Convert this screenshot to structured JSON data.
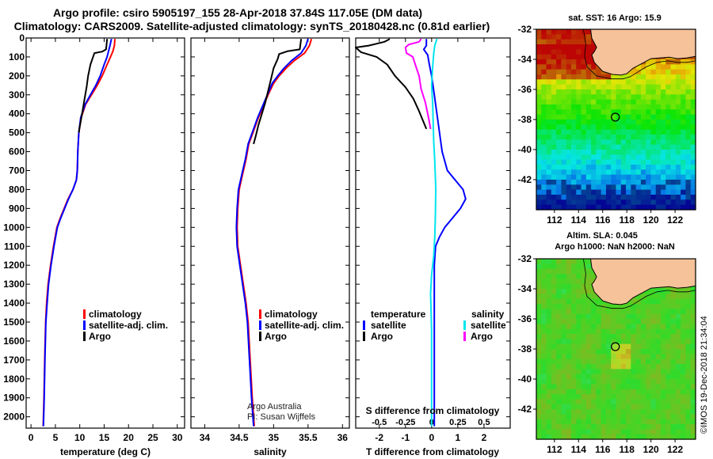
{
  "header": {
    "line1": "Argo profile: csiro 5905197_155 28-Apr-2018 37.84S 117.05E (DM data)",
    "line2": "Climatology: CARS2009. Satellite-adjusted climatology: synTS_20180428.nc (0.81d earlier)"
  },
  "colors": {
    "climatology": "#ff0000",
    "satellite": "#0000ff",
    "argo": "#000000",
    "salinity_diff": "#00e5ee",
    "argo_s_diff": "#ff00ff",
    "land": "#f6c29a"
  },
  "depth_ticks": [
    0,
    100,
    200,
    300,
    400,
    500,
    600,
    700,
    800,
    900,
    1000,
    1100,
    1200,
    1300,
    1400,
    1500,
    1600,
    1700,
    1800,
    1900,
    2000
  ],
  "chart_data": [
    {
      "type": "line",
      "name": "temperature-panel",
      "xlabel": "temperature (deg C)",
      "ylabel": "",
      "xlim": [
        -1,
        31.5
      ],
      "ylim": [
        2060,
        0
      ],
      "xticks": [
        0,
        5,
        10,
        15,
        20,
        25,
        30
      ],
      "legend_position": "bottom-right",
      "series": [
        {
          "name": "climatology",
          "color": "#ff0000",
          "x": [
            17.2,
            17.1,
            16.8,
            16.3,
            15.6,
            14.6,
            13.6,
            12.4,
            11.2,
            10.3,
            9.8,
            9.6,
            9.5,
            9.3,
            8.6,
            7.6,
            6.8,
            6.0,
            5.3,
            4.6,
            4.0,
            3.5,
            3.2,
            3.0,
            2.8,
            2.65,
            2.5
          ],
          "y": [
            5,
            40,
            70,
            100,
            140,
            200,
            250,
            300,
            350,
            420,
            500,
            600,
            700,
            750,
            800,
            850,
            900,
            950,
            1000,
            1100,
            1200,
            1300,
            1400,
            1500,
            1700,
            1900,
            2050
          ]
        },
        {
          "name": "satellite-adj. clim.",
          "color": "#0000ff",
          "x": [
            16.5,
            16.2,
            15.9,
            15.6,
            15.0,
            14.2,
            13.3,
            12.2,
            11.1,
            10.2,
            9.8,
            9.6,
            9.5,
            9.3,
            8.6,
            7.7,
            6.9,
            6.1,
            5.4,
            4.7,
            4.1,
            3.6,
            3.3,
            3.05,
            2.85,
            2.7,
            2.55
          ],
          "y": [
            5,
            40,
            70,
            100,
            140,
            200,
            250,
            300,
            350,
            420,
            500,
            600,
            700,
            750,
            800,
            850,
            900,
            950,
            1000,
            1100,
            1200,
            1300,
            1400,
            1500,
            1700,
            1900,
            2050
          ]
        },
        {
          "name": "Argo",
          "color": "#000000",
          "x": [
            15.6,
            15.4,
            14.6,
            13.0,
            12.8,
            12.2,
            11.7,
            11.4,
            11.0,
            10.6,
            10.2,
            9.9,
            9.8
          ],
          "y": [
            5,
            60,
            72,
            80,
            95,
            140,
            200,
            260,
            320,
            380,
            440,
            480,
            500
          ]
        }
      ]
    },
    {
      "type": "line",
      "name": "salinity-panel",
      "xlabel": "salinity",
      "ylabel": "",
      "xlim": [
        33.8,
        36.1
      ],
      "ylim": [
        2060,
        0
      ],
      "xticks": [
        34,
        34.5,
        35,
        35.5,
        36
      ],
      "xtick_labels": [
        "34",
        "34.5",
        "35",
        "35.5",
        "36"
      ],
      "legend_position": "bottom-right",
      "annotation": [
        "Argo Australia",
        "PI: Susan Wijffels"
      ],
      "series": [
        {
          "name": "climatology",
          "color": "#ff0000",
          "x": [
            35.55,
            35.52,
            35.45,
            35.3,
            35.18,
            35.08,
            35.0,
            34.92,
            34.85,
            34.78,
            34.7,
            34.64,
            34.6,
            34.55,
            34.5,
            34.48,
            34.47,
            34.48,
            34.52,
            34.56,
            34.6,
            34.63,
            34.66,
            34.69,
            34.72
          ],
          "y": [
            5,
            40,
            80,
            120,
            160,
            200,
            240,
            300,
            360,
            420,
            500,
            560,
            640,
            720,
            800,
            900,
            1000,
            1100,
            1200,
            1300,
            1400,
            1500,
            1700,
            1900,
            2050
          ]
        },
        {
          "name": "satellite-adj. clim.",
          "color": "#0000ff",
          "x": [
            35.5,
            35.47,
            35.4,
            35.26,
            35.15,
            35.06,
            34.98,
            34.91,
            34.84,
            34.77,
            34.69,
            34.63,
            34.59,
            34.54,
            34.49,
            34.47,
            34.46,
            34.47,
            34.51,
            34.55,
            34.59,
            34.62,
            34.65,
            34.68,
            34.71
          ],
          "y": [
            5,
            40,
            80,
            120,
            160,
            200,
            240,
            300,
            360,
            420,
            500,
            560,
            640,
            720,
            800,
            900,
            1000,
            1100,
            1200,
            1300,
            1400,
            1500,
            1700,
            1900,
            2050
          ]
        },
        {
          "name": "Argo",
          "color": "#000000",
          "x": [
            35.4,
            35.38,
            35.2,
            35.08,
            35.06,
            35.0,
            34.96,
            34.92,
            34.88,
            34.83,
            34.78,
            34.74,
            34.71
          ],
          "y": [
            5,
            60,
            70,
            85,
            110,
            160,
            220,
            280,
            340,
            400,
            460,
            520,
            560
          ]
        }
      ]
    },
    {
      "type": "line",
      "name": "difference-panel",
      "xlabel": "T difference from climatology",
      "ylabel": "",
      "xlim": [
        -2.9,
        3.0
      ],
      "ylim": [
        2060,
        0
      ],
      "xticks": [
        -2,
        -1,
        0,
        1,
        2
      ],
      "xtick_labels": [
        "-2",
        "-1",
        "0",
        "1",
        "2"
      ],
      "top_axis_label": "S difference from climatology",
      "top_axis_values": [
        -0.5,
        -0.25,
        0,
        0.25,
        0.5
      ],
      "top_axis_labels": [
        "-0.5",
        "-0.25",
        "0",
        "0.25",
        "0.5"
      ],
      "legend": {
        "temperature_heading": "temperature",
        "salinity_heading": "salinity",
        "entries": [
          {
            "name": "satellite",
            "color": "#0000ff",
            "group": "temperature"
          },
          {
            "name": "Argo",
            "color": "#000000",
            "group": "temperature"
          },
          {
            "name": "satellite",
            "color": "#00e5ee",
            "group": "salinity"
          },
          {
            "name": "Argo",
            "color": "#ff00ff",
            "group": "salinity"
          }
        ]
      },
      "series": [
        {
          "name": "temperature satellite",
          "color": "#0000ff",
          "units": "deg C",
          "x": [
            -0.2,
            -0.2,
            -0.3,
            -0.15,
            -0.1,
            0.0,
            0.1,
            0.2,
            0.3,
            0.4,
            0.5,
            0.6,
            0.9,
            1.2,
            1.3,
            1.1,
            0.8,
            0.5,
            0.3,
            0.15,
            0.1,
            0.1,
            0.1,
            0.1,
            0.1
          ],
          "y": [
            5,
            40,
            60,
            90,
            130,
            200,
            300,
            400,
            500,
            600,
            650,
            700,
            750,
            800,
            850,
            900,
            950,
            1000,
            1050,
            1100,
            1200,
            1400,
            1600,
            1800,
            2050
          ]
        },
        {
          "name": "temperature Argo",
          "color": "#000000",
          "units": "deg C",
          "x": [
            -1.6,
            -1.8,
            -2.4,
            -2.9,
            -2.7,
            -2.1,
            -1.7,
            -1.4,
            -1.0,
            -0.7,
            -0.5,
            -0.2
          ],
          "y": [
            5,
            20,
            40,
            50,
            75,
            100,
            140,
            200,
            260,
            320,
            380,
            480
          ]
        },
        {
          "name": "salinity satellite",
          "color": "#00e5ee",
          "units": "psu",
          "x": [
            0.05,
            0.03,
            0.02,
            0.01,
            0.0,
            0.01,
            0.015,
            0.02,
            0.03,
            0.04,
            0.035,
            0.03,
            0.02,
            0.0,
            -0.01,
            -0.005,
            0.0,
            0.0,
            0.0,
            0.0
          ],
          "y": [
            5,
            40,
            80,
            150,
            250,
            350,
            450,
            550,
            650,
            800,
            950,
            1050,
            1150,
            1250,
            1350,
            1450,
            1550,
            1650,
            1800,
            2050
          ]
        },
        {
          "name": "salinity Argo",
          "color": "#ff00ff",
          "units": "psu",
          "x": [
            -0.1,
            -0.12,
            -0.22,
            -0.25,
            -0.24,
            -0.18,
            -0.15,
            -0.12,
            -0.1,
            -0.06,
            -0.03,
            -0.01
          ],
          "y": [
            5,
            20,
            35,
            50,
            80,
            100,
            150,
            200,
            270,
            340,
            420,
            480
          ]
        }
      ]
    },
    {
      "type": "heatmap",
      "name": "sst-map",
      "title": "sat. SST: 16 Argo: 15.9",
      "xlim": [
        110.5,
        123.7
      ],
      "ylim": [
        -44,
        -32
      ],
      "xticks": [
        112,
        114,
        116,
        118,
        120,
        122
      ],
      "yticks": [
        -32,
        -34,
        -36,
        -38,
        -40,
        -42
      ],
      "argo_position": {
        "lon": 117.05,
        "lat": -37.84
      }
    },
    {
      "type": "heatmap",
      "name": "sla-map",
      "title_lines": [
        "Altim. SLA: 0.045",
        "Argo h1000: NaN h2000: NaN"
      ],
      "xlim": [
        110.5,
        123.7
      ],
      "ylim": [
        -44,
        -32
      ],
      "xticks": [
        112,
        114,
        116,
        118,
        120,
        122
      ],
      "yticks": [
        -32,
        -34,
        -36,
        -38,
        -40,
        -42
      ],
      "argo_position": {
        "lon": 117.05,
        "lat": -37.84
      }
    }
  ],
  "footer": {
    "rotated_stamp": "©IMOS 19-Dec-2018 21:34:04"
  }
}
